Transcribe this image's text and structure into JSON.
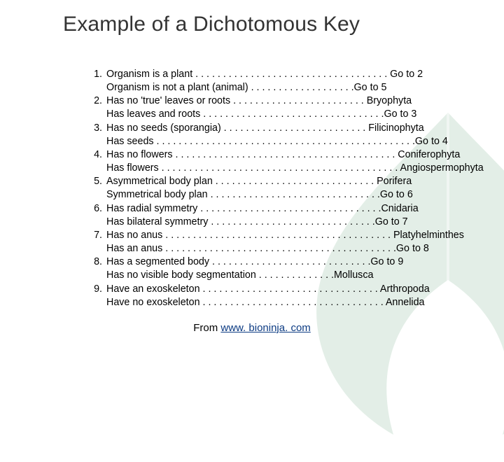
{
  "title": "Example of a Dichotomous Key",
  "key_items": [
    {
      "num": "1.",
      "a": "Organism is a plant . . . . . . . . . . . . . . . . . . . . . . . . . . . . . . . . . . . Go to 2",
      "b": "Organism is not a plant (animal) . . . . . . . . . . . . . . . . . . .Go to 5"
    },
    {
      "num": "2.",
      "a": "Has no 'true' leaves or roots . . . . . . . . . . . . . . . . . . . . . . . . Bryophyta",
      "b": "Has leaves and roots . . . . . . . . . . . . . . . . . . . . . . . . . . . . . . . . .Go to 3"
    },
    {
      "num": "3.",
      "a": "Has no seeds (sporangia) . . . . . . . . . . . . . . . . . . . . . . . . . . Filicinophyta",
      "b": "Has seeds . . . . . . . . . . . . . . . . . . . . . . . . . . . . . . . . . . . . . . . . . . . . . . .Go to 4"
    },
    {
      "num": "4.",
      "a": "Has no flowers . . . . . . . . . . . . . . . . . . . . . . . . . . . . . . . . . . . . . . . . Coniferophyta",
      "b": "Has flowers . . . . . . . . . . . . . . . . . . . . . . . . . . . . . . . . . . . . . . . . . . . Angiospermophyta"
    },
    {
      "num": "5.",
      "a": "Asymmetrical body plan . . . . . . . . . . . . . . . . . . . . . . . . . . . . . Porifera",
      "b": "Symmetrical body plan . . . . . . . . . . . . . . . . . . . . . . . . . . . . . . .Go to 6"
    },
    {
      "num": "6.",
      "a": "Has radial symmetry . . . . . . . . . . . . . . . . . . . . . . . . . . . . . . . . .Cnidaria",
      "b": "Has bilateral symmetry . . . . . . . . . . . . . . . . . . . . . . . . . . . . . .Go to 7"
    },
    {
      "num": "7.",
      "a": "Has no anus . . . . . . . . . . . . . . . . . . . . . . . . . . . . . . . . . . . . . . . . . Platyhelminthes",
      "b": "Has an anus . . . . . . . . . . . . . . . . . . . . . . . . . . . . . . . . . . . . . . . . . .Go to 8"
    },
    {
      "num": "8.",
      "a": "Has a segmented body . . . . . . . . . . . . . . . . . . . . . . . . . . . . .Go to 9",
      "b": "Has no visible body segmentation . . . . . . . . . . . . . .Mollusca"
    },
    {
      "num": "9.",
      "a": "Have an exoskeleton . . . . . . . . . . . . . . . . . . . . . . . . . . . . . . . . Arthropoda",
      "b": "Have no exoskeleton . . . . . . . . . . . . . . . . . . . . . . . . . . . . . . . . . Annelida"
    }
  ],
  "source_prefix": "From ",
  "source_link_text": "www. bioninja. com",
  "colors": {
    "title_color": "#333333",
    "text_color": "#000000",
    "link_color": "#0b3a82",
    "bg_leaf_color": "#3f8f5a",
    "background": "#ffffff"
  },
  "fontsize": {
    "title": 30,
    "body": 14.3,
    "source": 15
  }
}
